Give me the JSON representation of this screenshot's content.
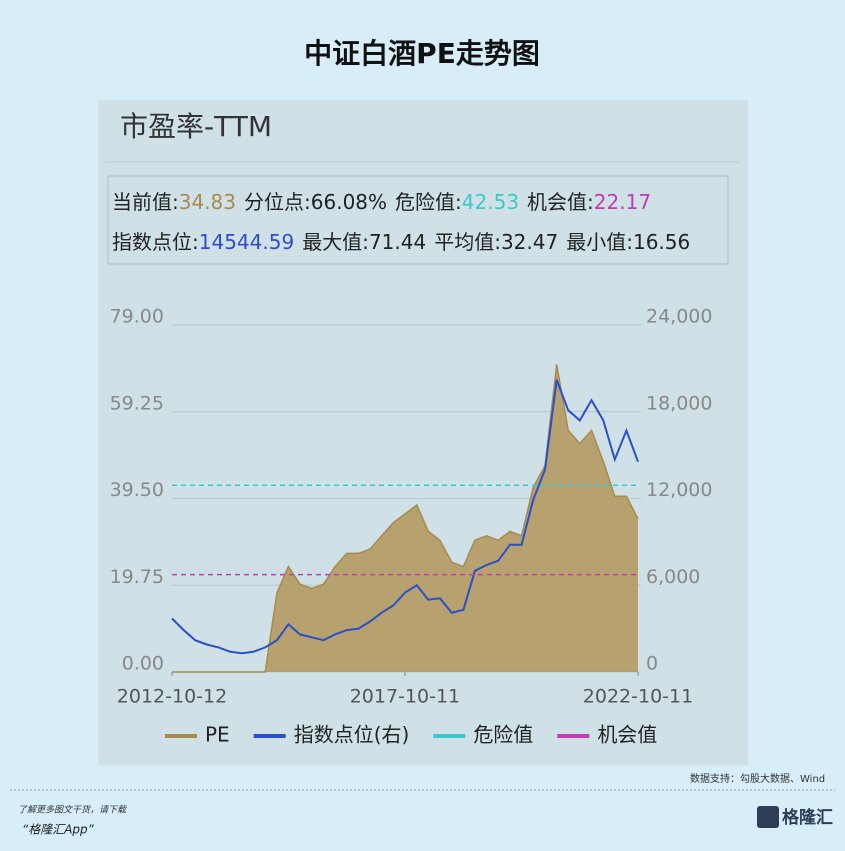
{
  "chart_data": {
    "type": "line",
    "title": "中证白酒PE走势图",
    "panel_title": "市盈率-TTM",
    "stats": [
      [
        {
          "label": "当前值:",
          "value": "34.83",
          "color": "#a88a4e"
        },
        {
          "label": "分位点:",
          "value": "66.08%",
          "color": "#222222"
        },
        {
          "label": "危险值:",
          "value": "42.53",
          "color": "#3cc8c8"
        },
        {
          "label": "机会值:",
          "value": "22.17",
          "color": "#c03bb0"
        }
      ],
      [
        {
          "label": "指数点位:",
          "value": "14544.59",
          "color": "#2b4fc7"
        },
        {
          "label": "最大值:",
          "value": "71.44",
          "color": "#222222"
        },
        {
          "label": "平均值:",
          "value": "32.47",
          "color": "#222222"
        },
        {
          "label": "最小值:",
          "value": "16.56",
          "color": "#222222"
        }
      ]
    ],
    "x": [
      "2012-10-12",
      "2013-01-12",
      "2013-04-12",
      "2013-07-12",
      "2013-10-12",
      "2014-01-12",
      "2014-04-12",
      "2014-07-12",
      "2014-10-12",
      "2015-01-12",
      "2015-04-12",
      "2015-07-12",
      "2015-10-12",
      "2016-01-12",
      "2016-04-12",
      "2016-07-12",
      "2016-10-12",
      "2017-01-12",
      "2017-04-12",
      "2017-07-12",
      "2017-10-12",
      "2018-01-12",
      "2018-04-12",
      "2018-07-12",
      "2018-10-12",
      "2019-01-12",
      "2019-04-12",
      "2019-07-12",
      "2019-10-12",
      "2020-01-12",
      "2020-04-12",
      "2020-07-12",
      "2020-10-12",
      "2021-01-12",
      "2021-04-12",
      "2021-07-12",
      "2021-10-12",
      "2022-01-12",
      "2022-04-12",
      "2022-07-12",
      "2022-10-11"
    ],
    "series": [
      {
        "name": "PE",
        "color": "#a88a4e",
        "fill": "#b39a62",
        "axis": "y",
        "values": [
          0,
          0,
          0,
          0,
          0,
          0,
          0,
          0,
          0,
          18,
          24,
          20,
          19,
          20,
          24,
          27,
          27,
          28,
          31,
          34,
          36,
          38,
          32,
          30,
          25,
          24,
          30,
          31,
          30,
          32,
          31,
          42,
          47,
          70,
          55,
          52,
          55,
          48,
          40,
          40,
          34.83
        ]
      },
      {
        "name": "指数点位(右)",
        "color": "#2b4fc7",
        "axis": "y2",
        "values": [
          3700,
          2900,
          2200,
          1900,
          1700,
          1400,
          1300,
          1400,
          1700,
          2200,
          3300,
          2600,
          2400,
          2200,
          2600,
          2900,
          3000,
          3500,
          4100,
          4600,
          5500,
          6000,
          5000,
          5100,
          4100,
          4300,
          7000,
          7400,
          7700,
          8800,
          8800,
          11900,
          14000,
          20200,
          18100,
          17400,
          18800,
          17400,
          14700,
          16700,
          14544.59
        ]
      }
    ],
    "reference_lines": [
      {
        "name": "危险值",
        "value": 42.53,
        "color": "#3cc8c8"
      },
      {
        "name": "机会值",
        "value": 22.17,
        "color": "#c03bb0"
      }
    ],
    "xlim": [
      "2012-10-12",
      "2022-10-11"
    ],
    "xticks": [
      "2012-10-12",
      "2017-10-11",
      "2022-10-11"
    ],
    "ylim": [
      0,
      79
    ],
    "yticks": [
      {
        "value": 0,
        "label": "0.00"
      },
      {
        "value": 19.75,
        "label": "19.75"
      },
      {
        "value": 39.5,
        "label": "39.50"
      },
      {
        "value": 59.25,
        "label": "59.25"
      },
      {
        "value": 79,
        "label": "79.00"
      }
    ],
    "y2lim": [
      0,
      24000
    ],
    "y2ticks": [
      0,
      {
        "value": 6000,
        "label": "6,000"
      },
      {
        "value": 12000,
        "label": "12,000"
      },
      {
        "value": 18000,
        "label": "18,000"
      },
      {
        "value": 24000,
        "label": "24,000"
      }
    ],
    "grid": true,
    "source": "数据支持：勾股大数据、Wind",
    "footer_note": "了解更多图文干货，请下载",
    "footer_app": "“格隆汇App”",
    "logo": "格隆汇"
  }
}
